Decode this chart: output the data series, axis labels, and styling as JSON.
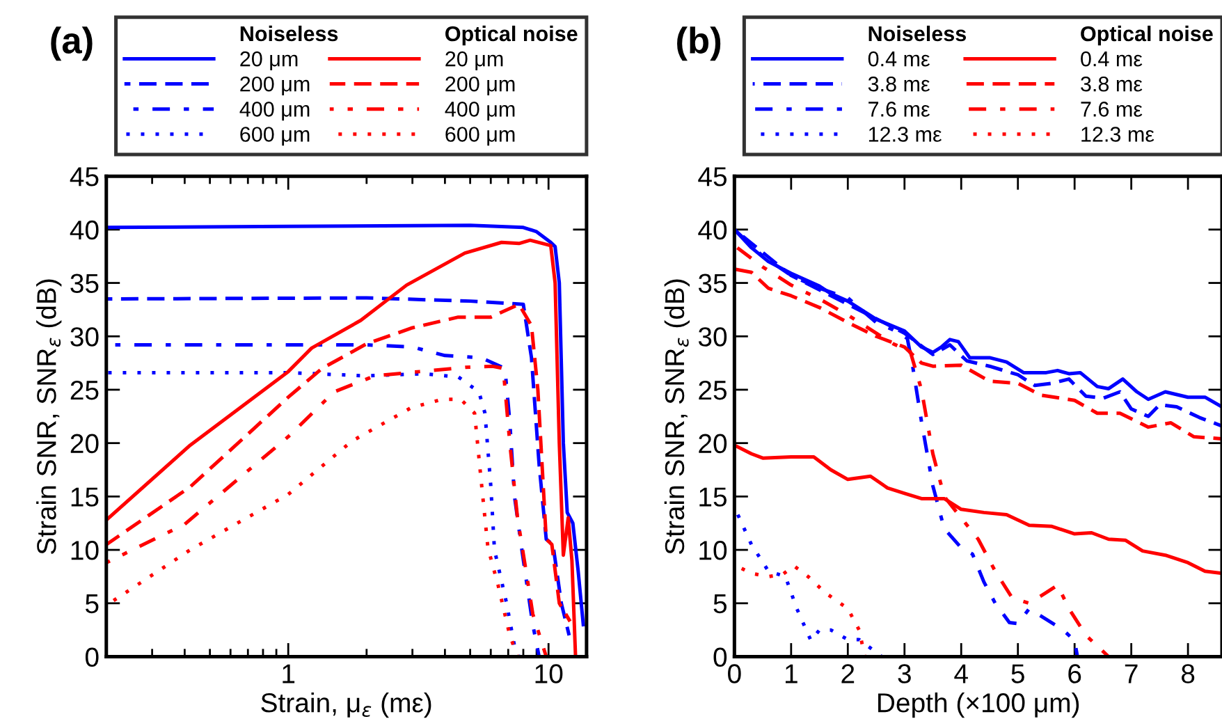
{
  "chart_data": [
    {
      "type": "line",
      "title": "(a)",
      "xlabel": "Strain, μ$_{ε}$ (mε)",
      "ylabel": "Strain SNR, SNR$_{ε}$ (dB)",
      "log": "x",
      "xlim": [
        0.2,
        14
      ],
      "xticks": [
        1,
        10
      ],
      "ylim": [
        0,
        45
      ],
      "yticks": [
        0,
        5,
        10,
        15,
        20,
        25,
        30,
        35,
        40,
        45
      ],
      "grid": false,
      "legend": "top",
      "annotations": [
        "Noiseless",
        "Optical noise"
      ],
      "series": [
        {
          "name": "20 μm",
          "color": "#0000ff",
          "line_style": "solid",
          "x": [
            0.2,
            1,
            5,
            8,
            9,
            10.2,
            10.6,
            11,
            11.4,
            11.8,
            12.4,
            13,
            13.6
          ],
          "values": [
            40.2,
            40.3,
            40.4,
            40.2,
            39.8,
            38.8,
            38.4,
            35,
            20,
            13.5,
            12.5,
            8,
            3
          ]
        },
        {
          "name": "200 μm",
          "color": "#0000ff",
          "line_style": "dashed",
          "x": [
            0.2,
            2,
            5,
            8,
            8.6,
            9.2,
            9.8,
            10.4,
            11.2,
            12
          ],
          "values": [
            33.5,
            33.6,
            33.3,
            33,
            28,
            18,
            11,
            10.5,
            5,
            2
          ]
        },
        {
          "name": "400 μm",
          "color": "#0000ff",
          "line_style": "dashdot",
          "x": [
            0.2,
            2,
            3,
            4,
            5.5,
            6.8,
            7.1,
            7.4,
            7.9,
            8.7,
            9.2
          ],
          "values": [
            29.2,
            29.2,
            29,
            28.2,
            28,
            27,
            22,
            15,
            10,
            3,
            0
          ]
        },
        {
          "name": "600 μm",
          "color": "#0000ff",
          "line_style": "dotted",
          "x": [
            0.2,
            1,
            2,
            3.3,
            4.5,
            5.4,
            5.7,
            6,
            6.2,
            6.9,
            7.4,
            7.7
          ],
          "values": [
            26.6,
            26.6,
            26.3,
            26.5,
            26.2,
            24.8,
            22.8,
            16,
            10,
            5,
            1,
            0
          ]
        },
        {
          "name": "20 μm",
          "color": "#ff0000",
          "line_style": "solid",
          "x": [
            0.2,
            0.42,
            1,
            1.23,
            1.9,
            2.85,
            4.77,
            6.6,
            7.7,
            8.5,
            10.2,
            10.6,
            11,
            11.4,
            11.9,
            12.3,
            12.7
          ],
          "values": [
            12.8,
            19.8,
            26.7,
            28.9,
            31.5,
            34.8,
            37.8,
            38.8,
            38.7,
            39,
            38.5,
            35,
            20,
            9.5,
            13,
            9,
            0
          ]
        },
        {
          "name": "200 μm",
          "color": "#ff0000",
          "line_style": "dashed",
          "x": [
            0.2,
            0.42,
            1,
            1.35,
            2,
            3,
            4.5,
            6,
            7.7,
            8.6,
            9.1,
            9.8,
            10.3,
            11,
            12.1
          ],
          "values": [
            10.5,
            15.9,
            24.3,
            27,
            29.3,
            30.8,
            31.8,
            31.8,
            33,
            31,
            25,
            11,
            10.5,
            5,
            3.3
          ]
        },
        {
          "name": "400 μm",
          "color": "#ff0000",
          "line_style": "dashdot",
          "x": [
            0.2,
            0.4,
            1,
            1.5,
            2.15,
            3.2,
            4.8,
            6.1,
            6.7,
            7.1,
            7.6,
            8.2,
            8.7,
            9.8
          ],
          "values": [
            8.8,
            12.4,
            20.6,
            24.8,
            26.3,
            26.7,
            27.1,
            27.2,
            27,
            20,
            13,
            8,
            4,
            0
          ]
        },
        {
          "name": "600 μm",
          "color": "#ff0000",
          "line_style": "dotted",
          "x": [
            0.2,
            0.42,
            1,
            1.76,
            2.96,
            3.9,
            4.6,
            5.2,
            5.5,
            5.85,
            6.4,
            7.1,
            7.6
          ],
          "values": [
            4.8,
            10,
            15.2,
            20.2,
            23.3,
            24.1,
            24.1,
            22.8,
            16.7,
            10.2,
            6.7,
            2,
            0
          ]
        }
      ]
    },
    {
      "type": "line",
      "title": "(b)",
      "xlabel": "Depth (×100 μm)",
      "ylabel": "Strain SNR, SNR$_{ε}$ (dB)",
      "xlim": [
        0,
        8.6
      ],
      "xticks": [
        0,
        1,
        2,
        3,
        4,
        5,
        6,
        7,
        8
      ],
      "ylim": [
        0,
        45
      ],
      "yticks": [
        0,
        5,
        10,
        15,
        20,
        25,
        30,
        35,
        40,
        45
      ],
      "grid": false,
      "legend": "top",
      "annotations": [
        "Noiseless",
        "Optical noise"
      ],
      "series": [
        {
          "name": "0.4 mε",
          "color": "#0000ff",
          "line_style": "solid",
          "x": [
            0,
            0.3,
            0.6,
            1,
            1.5,
            1.7,
            2,
            2.5,
            3,
            3.3,
            3.5,
            3.65,
            3.8,
            3.95,
            4.15,
            4.5,
            4.8,
            5.1,
            5.5,
            5.7,
            5.9,
            6.1,
            6.4,
            6.6,
            6.85,
            7.1,
            7.3,
            7.6,
            8,
            8.3,
            8.6
          ],
          "values": [
            40,
            38.3,
            37,
            35.9,
            34.7,
            34,
            33.3,
            31.6,
            30.5,
            29,
            28.5,
            29,
            29.7,
            29.5,
            28,
            28,
            27.6,
            26.6,
            26.6,
            26.8,
            26.5,
            26.6,
            25.3,
            25.1,
            26,
            24.8,
            24.1,
            24.8,
            24.3,
            24.3,
            23.4
          ]
        },
        {
          "name": "3.8 mε",
          "color": "#0000ff",
          "line_style": "dashed",
          "x": [
            0,
            1,
            2,
            3,
            3.5,
            3.8,
            4.1,
            4.5,
            5,
            5.3,
            5.6,
            5.9,
            6.2,
            6.5,
            6.8,
            7,
            7.3,
            7.5,
            7.8,
            8.2,
            8.6
          ],
          "values": [
            40,
            35.7,
            33,
            30.3,
            28.3,
            29.2,
            27.7,
            27.2,
            26.4,
            25.4,
            25.6,
            26,
            24.4,
            24.2,
            24.8,
            23.2,
            22.5,
            23.6,
            23.4,
            22.4,
            21.6
          ]
        },
        {
          "name": "7.6 mε",
          "color": "#0000ff",
          "line_style": "dashdot",
          "x": [
            0,
            0.5,
            1,
            1.5,
            2,
            2.5,
            2.8,
            3.05,
            3.15,
            3.3,
            3.5,
            3.7,
            4,
            4.2,
            4.4,
            4.6,
            4.85,
            5,
            5.2,
            5.5,
            5.8,
            6,
            6.05
          ],
          "values": [
            40,
            37.5,
            35.7,
            34.5,
            33.6,
            31.3,
            30.6,
            29.8,
            27,
            22,
            16,
            12,
            10.2,
            9.6,
            7,
            5,
            3.2,
            3.1,
            4.5,
            3.5,
            2.5,
            1.5,
            0
          ]
        },
        {
          "name": "12.3 mε",
          "color": "#0000ff",
          "line_style": "dotted",
          "x": [
            0,
            0.3,
            0.6,
            0.9,
            1.1,
            1.35,
            1.5,
            1.7,
            2,
            2.2,
            2.6
          ],
          "values": [
            14,
            10.5,
            8,
            7.5,
            4.5,
            1.5,
            2.5,
            2.5,
            1.6,
            1.6,
            0
          ]
        },
        {
          "name": "0.4 mε",
          "color": "#ff0000",
          "line_style": "solid",
          "x": [
            0,
            0.3,
            0.5,
            1,
            1.4,
            1.7,
            2,
            2.4,
            2.7,
            3,
            3.3,
            3.7,
            4,
            4.4,
            4.8,
            5.2,
            5.6,
            6,
            6.3,
            6.6,
            6.9,
            7.2,
            7.6,
            8,
            8.3,
            8.6
          ],
          "values": [
            19.8,
            19,
            18.6,
            18.7,
            18.7,
            17.5,
            16.6,
            16.9,
            15.8,
            15.3,
            14.8,
            14.8,
            13.8,
            13.5,
            13.3,
            12.3,
            12.2,
            11.5,
            11.6,
            11,
            10.9,
            9.9,
            9.5,
            8.8,
            8,
            7.8
          ]
        },
        {
          "name": "3.8 mε",
          "color": "#ff0000",
          "line_style": "dashed",
          "x": [
            0,
            0.3,
            0.6,
            1,
            1.5,
            2,
            2.5,
            3,
            3.3,
            3.5,
            4,
            4.5,
            5,
            5.4,
            6,
            6.4,
            6.8,
            7.3,
            7.7,
            8.1,
            8.6
          ],
          "values": [
            36.3,
            36,
            34.5,
            33.8,
            32.7,
            31.3,
            30,
            29,
            27.5,
            27.2,
            27.3,
            25.8,
            25.6,
            24.5,
            24,
            22.8,
            22.8,
            21.5,
            21.9,
            20.6,
            20.4
          ]
        },
        {
          "name": "7.6 mε",
          "color": "#ff0000",
          "line_style": "dashdot",
          "x": [
            0,
            0.5,
            1,
            1.5,
            2,
            2.5,
            2.8,
            3.1,
            3.3,
            3.5,
            3.7,
            4,
            4.3,
            4.6,
            4.9,
            5.2,
            5.5,
            5.7,
            5.9,
            6.2,
            6.6
          ],
          "values": [
            38.5,
            36.5,
            34.8,
            33.5,
            32,
            30.3,
            29.3,
            28.6,
            25,
            19,
            15,
            13,
            11,
            8,
            5.5,
            5,
            6,
            6.7,
            4.5,
            2,
            0
          ]
        },
        {
          "name": "12.3 mε",
          "color": "#ff0000",
          "line_style": "dotted",
          "x": [
            0,
            0.3,
            0.6,
            0.85,
            1.05,
            1.3,
            1.6,
            2,
            2.2,
            2.3
          ],
          "values": [
            8.6,
            7.8,
            7.5,
            7.7,
            8.5,
            7.5,
            6,
            4.5,
            2.5,
            0
          ]
        }
      ]
    }
  ]
}
